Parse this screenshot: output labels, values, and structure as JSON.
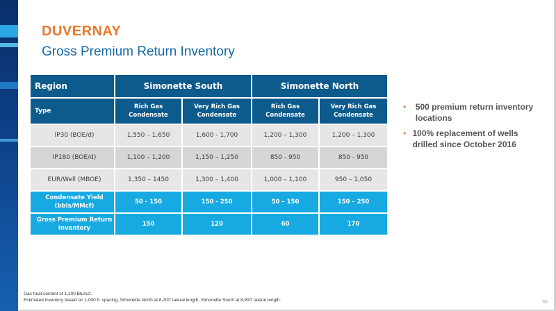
{
  "slide": {
    "title": "DUVERNAY",
    "subtitle": "Gross Premium Return Inventory",
    "page_number": "55"
  },
  "table": {
    "header_region": "Region",
    "groups": [
      "Simonette South",
      "Simonette North"
    ],
    "type_label": "Type",
    "types": [
      [
        "Rich Gas",
        "Condensate"
      ],
      [
        "Very Rich Gas",
        "Condensate"
      ],
      [
        "Rich Gas",
        "Condensate"
      ],
      [
        "Very Rich Gas",
        "Condensate"
      ]
    ],
    "rows": [
      {
        "label": [
          "IP30 (BOE/d)"
        ],
        "values": [
          "1,550 – 1,650",
          "1,600 - 1,700",
          "1,200 – 1,300",
          "1,200 – 1,300"
        ]
      },
      {
        "label": [
          "IP180 (BOE/d)"
        ],
        "values": [
          "1,100 – 1,200",
          "1,150 – 1,250",
          "850 - 950",
          "850 - 950"
        ]
      },
      {
        "label": [
          "EUR/Well (MBOE)"
        ],
        "values": [
          "1,350 – 1450",
          "1,300 – 1,400",
          "1,000 – 1,100",
          "950 – 1,050"
        ]
      },
      {
        "label": [
          "Condensate Yield",
          "(bbls/MMcf)"
        ],
        "values": [
          "50 - 150",
          "150 - 250",
          "50 – 150",
          "150 – 250"
        ]
      },
      {
        "label": [
          "Gross Premium Return",
          "Inventory"
        ],
        "values": [
          "150",
          "120",
          "60",
          "170"
        ]
      }
    ]
  },
  "bullets": [
    "500 premium return inventory locations",
    "100% replacement of wells drilled since October 2016"
  ],
  "footnotes": [
    "Gas heat content of 1,200 Btu/scf.",
    "Estimated inventory based on 1,000 ft. spacing, Simonette North at 8,200' lateral length, Simonette South at 8,900' lateral length."
  ],
  "colors": {
    "accent_orange": "#e8782a",
    "title_blue": "#1468a8",
    "header_navy": "#0d5a8c",
    "highlight_cyan": "#17a9e1"
  }
}
